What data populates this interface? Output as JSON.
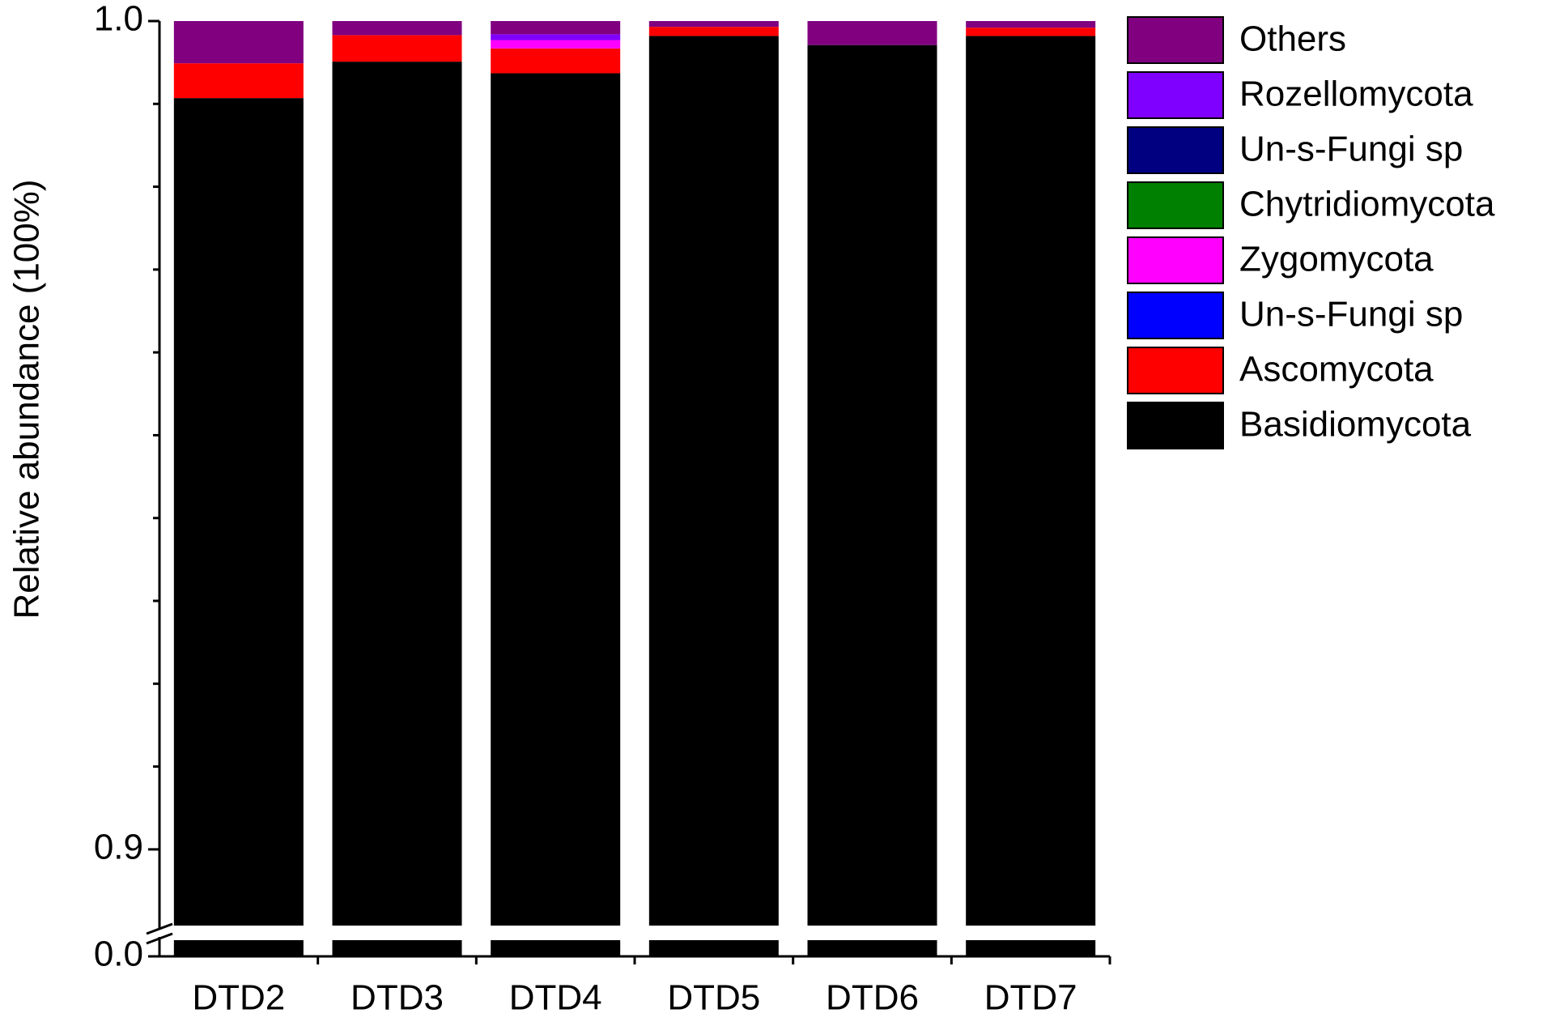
{
  "chart_data": {
    "type": "stacked_bar",
    "y_label": "Relative abundance (100%)",
    "categories": [
      "DTD2",
      "DTD3",
      "DTD4",
      "DTD5",
      "DTD6",
      "DTD7"
    ],
    "series": [
      {
        "name": "Basidiomycota",
        "color": "#000000",
        "values": [
          0.9907,
          0.9951,
          0.9937,
          0.9982,
          0.9971,
          0.9982
        ]
      },
      {
        "name": "Ascomycota",
        "color": "#ff0000",
        "values": [
          0.0042,
          0.0032,
          0.003,
          0.0011,
          0,
          0.001
        ]
      },
      {
        "name": "Un-s-Fungi sp",
        "color": "#0000ff",
        "values": [
          0,
          0,
          0,
          0,
          0,
          0
        ]
      },
      {
        "name": "Zygomycota",
        "color": "#ff00ff",
        "values": [
          0,
          0,
          0.001,
          0,
          0,
          0
        ]
      },
      {
        "name": "Chytridiomycota",
        "color": "#008000",
        "values": [
          0,
          0,
          0,
          0,
          0,
          0
        ]
      },
      {
        "name": "Un-s-Fungi sp",
        "color": "#000080",
        "values": [
          0,
          0,
          0,
          0,
          0,
          0
        ]
      },
      {
        "name": "Rozellomycota",
        "color": "#8000ff",
        "values": [
          0,
          0,
          0.0007,
          0,
          0,
          0
        ]
      },
      {
        "name": "Others",
        "color": "#800080",
        "values": [
          0.0051,
          0.0017,
          0.0016,
          0.0007,
          0.0029,
          0.0008
        ]
      }
    ],
    "ylim": [
      0,
      1
    ],
    "y_break": [
      0.002,
      0.8908
    ],
    "yticks": [
      {
        "value": 0,
        "label": "0.0"
      },
      0.9,
      {
        "value": 1,
        "label": "1.0"
      }
    ],
    "minor_yticks": [
      0.91,
      0.92,
      0.93,
      0.94,
      0.95,
      0.96,
      0.97,
      0.98,
      0.99
    ],
    "legend": "right"
  }
}
